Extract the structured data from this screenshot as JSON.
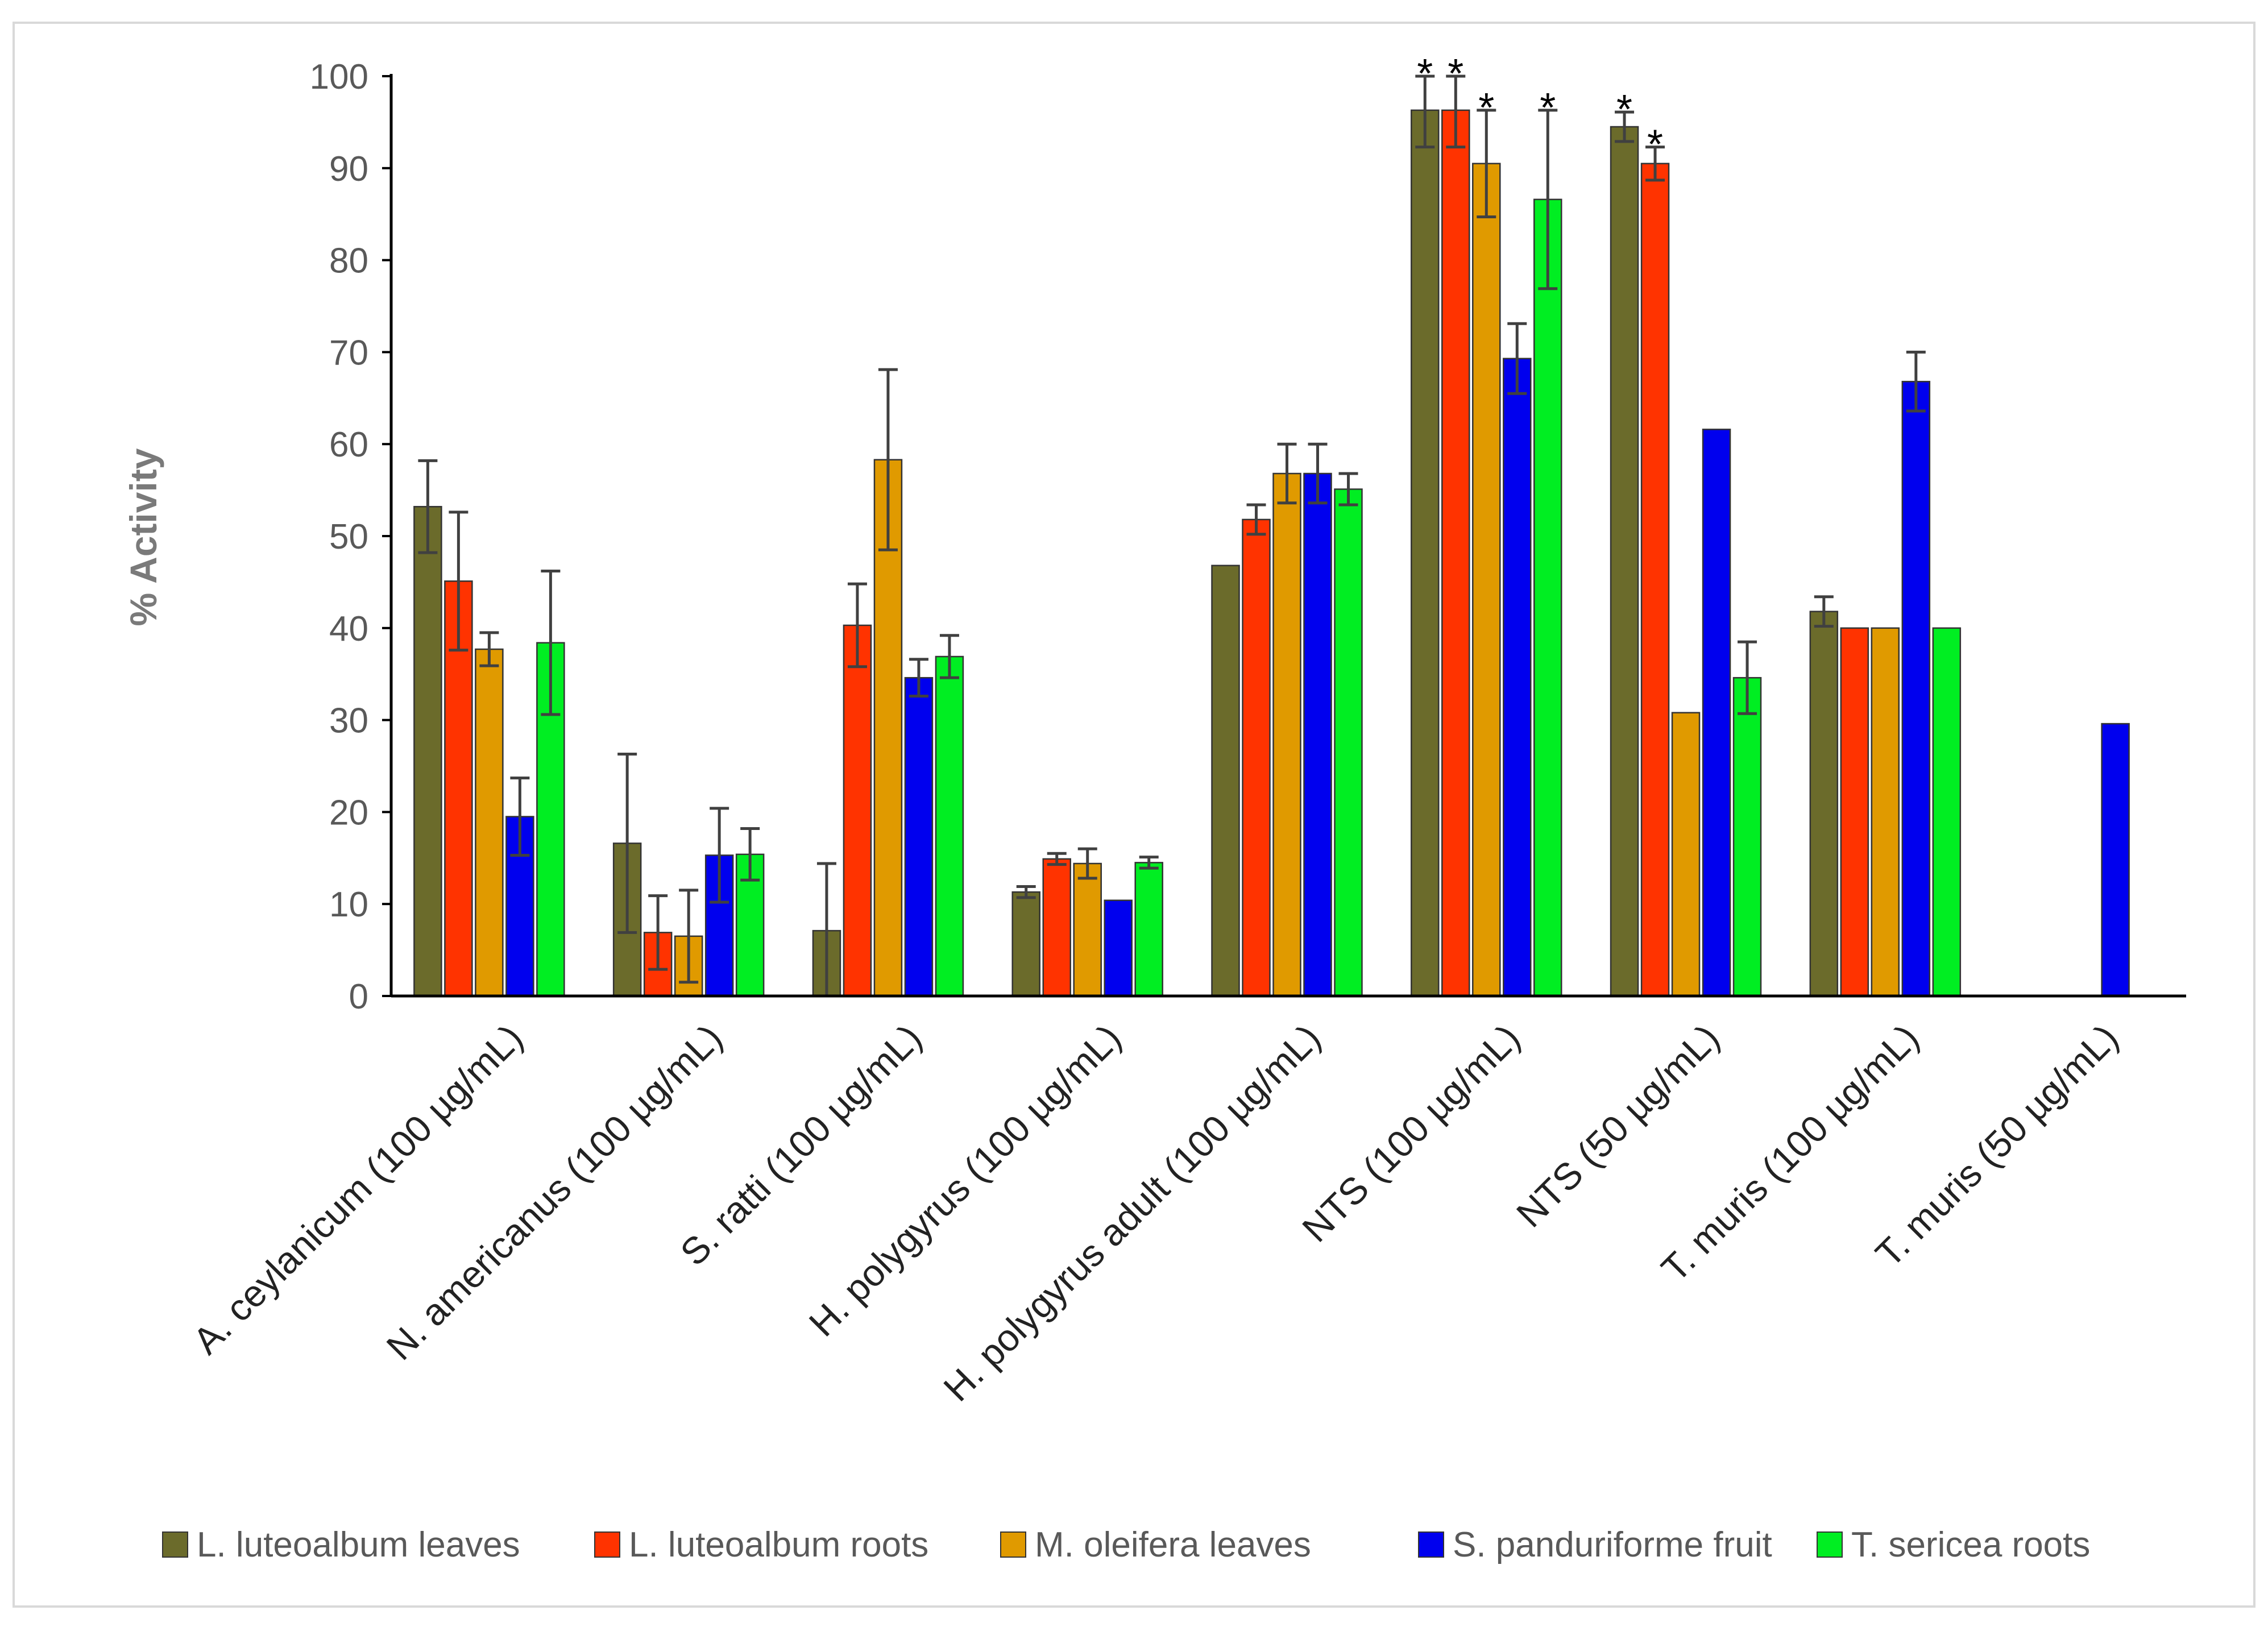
{
  "chart_data": {
    "type": "bar",
    "title": "",
    "xlabel": "",
    "ylabel": "% Activity",
    "ylim": [
      0,
      100
    ],
    "yticks": [
      0,
      10,
      20,
      30,
      40,
      50,
      60,
      70,
      80,
      90,
      100
    ],
    "grid": false,
    "legend_position": "bottom",
    "categories": [
      "A. ceylanicum (100 µg/mL)",
      "N. americanus (100 µg/mL)",
      "S. ratti (100 µg/mL)",
      "H. polygyrus (100 µg/mL)",
      "H. polygyrus adult (100 µg/mL)",
      "NTS (100 µg/mL)",
      "NTS (50 µg/mL)",
      "T. muris (100 µg/mL)",
      "T. muris (50 µg/mL)"
    ],
    "series": [
      {
        "name": "L. luteoalbum leaves",
        "color": "#6b6b2b",
        "values": [
          53.2,
          16.6,
          7.1,
          11.3,
          46.8,
          96.3,
          94.5,
          41.8,
          0
        ],
        "errors": [
          5.0,
          9.7,
          7.3,
          0.6,
          0,
          4.0,
          1.6,
          1.6,
          0
        ],
        "significant": [
          false,
          false,
          false,
          false,
          false,
          true,
          true,
          false,
          false
        ]
      },
      {
        "name": "L. luteoalbum roots",
        "color": "#ff3300",
        "values": [
          45.1,
          6.9,
          40.3,
          14.9,
          51.8,
          96.3,
          90.5,
          40.0,
          0
        ],
        "errors": [
          7.5,
          4.0,
          4.5,
          0.6,
          1.6,
          4.0,
          1.8,
          0,
          0
        ],
        "significant": [
          false,
          false,
          false,
          false,
          false,
          true,
          true,
          false,
          false
        ]
      },
      {
        "name": "M. oleifera leaves",
        "color": "#e09a00",
        "values": [
          37.7,
          6.5,
          58.3,
          14.4,
          56.8,
          90.5,
          30.8,
          40.0,
          0
        ],
        "errors": [
          1.8,
          5.0,
          9.8,
          1.6,
          3.2,
          5.8,
          0,
          0,
          0
        ],
        "significant": [
          false,
          false,
          false,
          false,
          false,
          true,
          false,
          false,
          false
        ]
      },
      {
        "name": "S. panduriforme fruit",
        "color": "#0000ee",
        "values": [
          19.5,
          15.3,
          34.6,
          10.4,
          56.8,
          69.3,
          61.6,
          66.8,
          29.6
        ],
        "errors": [
          4.2,
          5.1,
          2.0,
          0,
          3.2,
          3.8,
          0,
          3.2,
          0
        ],
        "significant": [
          false,
          false,
          false,
          false,
          false,
          false,
          false,
          false,
          false
        ]
      },
      {
        "name": "T. sericea roots",
        "color": "#00ee22",
        "values": [
          38.4,
          15.4,
          36.9,
          14.5,
          55.1,
          86.6,
          34.6,
          40.0,
          0
        ],
        "errors": [
          7.8,
          2.8,
          2.3,
          0.6,
          1.7,
          9.7,
          3.9,
          0,
          0
        ],
        "significant": [
          false,
          false,
          false,
          false,
          false,
          true,
          false,
          false,
          false
        ]
      }
    ],
    "significance_marker": "*"
  }
}
